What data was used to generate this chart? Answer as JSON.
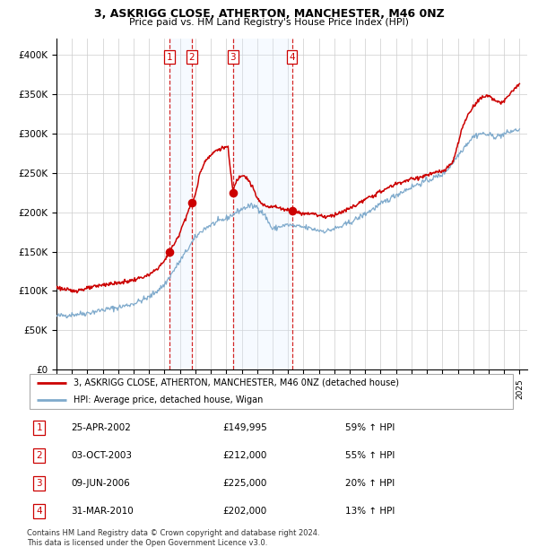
{
  "title": "3, ASKRIGG CLOSE, ATHERTON, MANCHESTER, M46 0NZ",
  "subtitle": "Price paid vs. HM Land Registry's House Price Index (HPI)",
  "legend_line1": "3, ASKRIGG CLOSE, ATHERTON, MANCHESTER, M46 0NZ (detached house)",
  "legend_line2": "HPI: Average price, detached house, Wigan",
  "footnote1": "Contains HM Land Registry data © Crown copyright and database right 2024.",
  "footnote2": "This data is licensed under the Open Government Licence v3.0.",
  "sales": [
    {
      "num": 1,
      "date": "25-APR-2002",
      "price": 149995,
      "pct": "59%",
      "dir": "↑"
    },
    {
      "num": 2,
      "date": "03-OCT-2003",
      "price": 212000,
      "pct": "55%",
      "dir": "↑"
    },
    {
      "num": 3,
      "date": "09-JUN-2006",
      "price": 225000,
      "pct": "20%",
      "dir": "↑"
    },
    {
      "num": 4,
      "date": "31-MAR-2010",
      "price": 202000,
      "pct": "13%",
      "dir": "↑"
    }
  ],
  "sale_dates_decimal": [
    2002.32,
    2003.75,
    2006.44,
    2010.25
  ],
  "vline_pairs": [
    [
      2002.32,
      2003.75
    ],
    [
      2006.44,
      2010.25
    ]
  ],
  "ylim": [
    0,
    420000
  ],
  "yticks": [
    0,
    50000,
    100000,
    150000,
    200000,
    250000,
    300000,
    350000,
    400000
  ],
  "ytick_labels": [
    "£0",
    "£50K",
    "£100K",
    "£150K",
    "£200K",
    "£250K",
    "£300K",
    "£350K",
    "£400K"
  ],
  "xlim_start": 1995.0,
  "xlim_end": 2025.5,
  "red_color": "#cc0000",
  "blue_color": "#7faacc",
  "bg_color": "#ffffff",
  "grid_color": "#cccccc",
  "shade_color": "#ddeeff",
  "dashed_color": "#cc0000",
  "box_color": "#cc0000",
  "hpi_anchors": [
    [
      1995.0,
      68000
    ],
    [
      1996.0,
      70000
    ],
    [
      1997.0,
      72000
    ],
    [
      1998.0,
      76000
    ],
    [
      1999.0,
      79000
    ],
    [
      2000.0,
      84000
    ],
    [
      2001.0,
      92000
    ],
    [
      2002.0,
      108000
    ],
    [
      2003.0,
      138000
    ],
    [
      2004.0,
      168000
    ],
    [
      2004.5,
      178000
    ],
    [
      2005.0,
      184000
    ],
    [
      2006.0,
      192000
    ],
    [
      2007.0,
      204000
    ],
    [
      2007.5,
      208000
    ],
    [
      2008.0,
      207000
    ],
    [
      2008.5,
      196000
    ],
    [
      2009.0,
      178000
    ],
    [
      2009.5,
      182000
    ],
    [
      2010.0,
      184000
    ],
    [
      2010.5,
      182000
    ],
    [
      2011.0,
      181000
    ],
    [
      2011.5,
      179000
    ],
    [
      2012.0,
      177000
    ],
    [
      2012.5,
      176000
    ],
    [
      2013.0,
      179000
    ],
    [
      2013.5,
      182000
    ],
    [
      2014.0,
      187000
    ],
    [
      2014.5,
      192000
    ],
    [
      2015.0,
      198000
    ],
    [
      2015.5,
      204000
    ],
    [
      2016.0,
      210000
    ],
    [
      2016.5,
      216000
    ],
    [
      2017.0,
      222000
    ],
    [
      2017.5,
      227000
    ],
    [
      2018.0,
      232000
    ],
    [
      2018.5,
      236000
    ],
    [
      2019.0,
      240000
    ],
    [
      2019.5,
      244000
    ],
    [
      2020.0,
      248000
    ],
    [
      2020.5,
      258000
    ],
    [
      2021.0,
      272000
    ],
    [
      2021.5,
      285000
    ],
    [
      2022.0,
      296000
    ],
    [
      2022.5,
      300000
    ],
    [
      2023.0,
      298000
    ],
    [
      2023.5,
      296000
    ],
    [
      2024.0,
      299000
    ],
    [
      2024.5,
      303000
    ],
    [
      2025.0,
      305000
    ]
  ],
  "prop_anchors": [
    [
      1995.0,
      105000
    ],
    [
      1995.5,
      102000
    ],
    [
      1996.0,
      100000
    ],
    [
      1997.0,
      103000
    ],
    [
      1998.0,
      108000
    ],
    [
      1999.0,
      110000
    ],
    [
      2000.0,
      114000
    ],
    [
      2001.0,
      120000
    ],
    [
      2001.5,
      128000
    ],
    [
      2002.0,
      138000
    ],
    [
      2002.32,
      149995
    ],
    [
      2002.8,
      165000
    ],
    [
      2003.0,
      175000
    ],
    [
      2003.75,
      212000
    ],
    [
      2004.0,
      222000
    ],
    [
      2004.3,
      250000
    ],
    [
      2004.7,
      268000
    ],
    [
      2005.0,
      272000
    ],
    [
      2005.3,
      278000
    ],
    [
      2005.8,
      282000
    ],
    [
      2006.1,
      283000
    ],
    [
      2006.44,
      225000
    ],
    [
      2006.6,
      238000
    ],
    [
      2006.9,
      246000
    ],
    [
      2007.1,
      248000
    ],
    [
      2007.4,
      242000
    ],
    [
      2007.7,
      232000
    ],
    [
      2008.0,
      218000
    ],
    [
      2008.3,
      210000
    ],
    [
      2008.7,
      207000
    ],
    [
      2009.0,
      208000
    ],
    [
      2009.3,
      206000
    ],
    [
      2009.7,
      204000
    ],
    [
      2010.25,
      202000
    ],
    [
      2010.6,
      200000
    ],
    [
      2011.0,
      198000
    ],
    [
      2011.5,
      199000
    ],
    [
      2012.0,
      196000
    ],
    [
      2012.5,
      194000
    ],
    [
      2013.0,
      197000
    ],
    [
      2013.5,
      200000
    ],
    [
      2014.0,
      205000
    ],
    [
      2014.5,
      210000
    ],
    [
      2015.0,
      216000
    ],
    [
      2015.5,
      221000
    ],
    [
      2016.0,
      226000
    ],
    [
      2016.5,
      231000
    ],
    [
      2017.0,
      236000
    ],
    [
      2017.5,
      239000
    ],
    [
      2018.0,
      242000
    ],
    [
      2018.5,
      244000
    ],
    [
      2019.0,
      247000
    ],
    [
      2019.5,
      250000
    ],
    [
      2020.0,
      252000
    ],
    [
      2020.3,
      255000
    ],
    [
      2020.7,
      265000
    ],
    [
      2021.0,
      285000
    ],
    [
      2021.3,
      308000
    ],
    [
      2021.7,
      325000
    ],
    [
      2022.0,
      334000
    ],
    [
      2022.3,
      342000
    ],
    [
      2022.7,
      347000
    ],
    [
      2023.0,
      348000
    ],
    [
      2023.3,
      344000
    ],
    [
      2023.7,
      338000
    ],
    [
      2024.0,
      341000
    ],
    [
      2024.3,
      348000
    ],
    [
      2024.7,
      358000
    ],
    [
      2025.0,
      362000
    ]
  ]
}
